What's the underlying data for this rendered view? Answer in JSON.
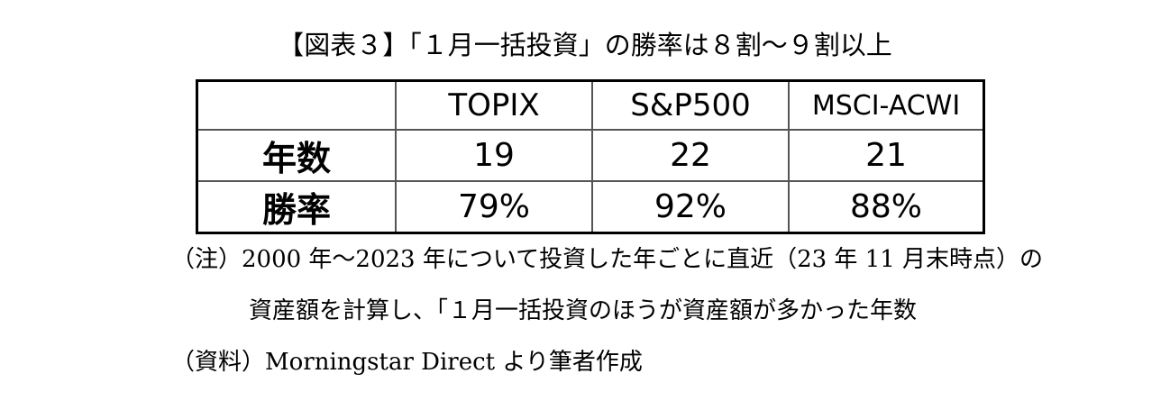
{
  "title": "【図表３】「１月一括投資」の勝率は８割～９割以上",
  "table": {
    "header": [
      "TOPIX",
      "S&P500",
      "MSCI-ACWI"
    ],
    "rows": [
      [
        "年数",
        "19",
        "22",
        "21"
      ],
      [
        "勝率",
        "79%",
        "92%",
        "88%"
      ]
    ]
  },
  "notes": [
    "（注）2000 年～2023 年について投資した年ごとに直近（23 年 11 月末時点）の",
    "資産額を計算し、「１月一括投資のほうが資産額が多かった年数",
    "（資料）Morningstar Direct より筆者作成"
  ]
}
